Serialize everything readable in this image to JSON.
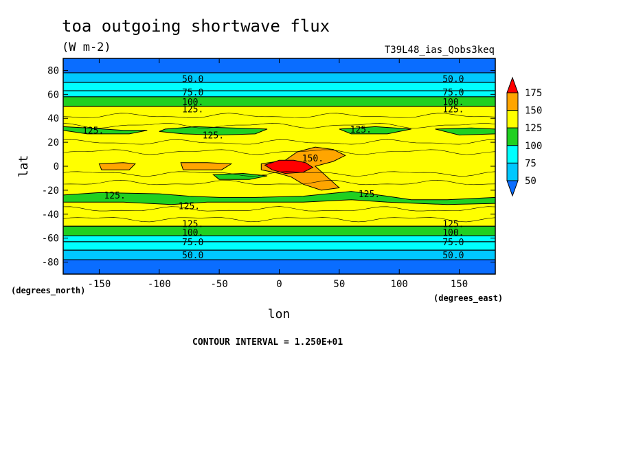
{
  "chart_data": {
    "type": "heatmap",
    "title": "toa outgoing shortwave flux",
    "units": "(W m-2)",
    "dataset": "T39L48_ias_Qobs3keq",
    "xlabel": "lon",
    "ylabel": "lat",
    "x_units": "(degrees_east)",
    "y_units": "(degrees_north)",
    "xlim": [
      -180,
      180
    ],
    "ylim": [
      -90,
      90
    ],
    "xticks": [
      -150,
      -100,
      -50,
      0,
      50,
      100,
      150
    ],
    "yticks": [
      80,
      60,
      40,
      20,
      0,
      -20,
      -40,
      -60,
      -80
    ],
    "xtick_labels": [
      "-150",
      "-100",
      "-50",
      "0",
      "50",
      "100",
      "150"
    ],
    "ytick_labels": [
      "80",
      "60",
      "40",
      "20",
      "0",
      "-20",
      "-40",
      "-60",
      "-80"
    ],
    "contour_interval_text": "CONTOUR INTERVAL = 1.250E+01",
    "colorbar": {
      "levels": [
        50,
        75,
        100,
        125,
        150,
        175
      ],
      "labels": [
        "50",
        "75",
        "100",
        "125",
        "150",
        "175"
      ],
      "colors": [
        "#0a6dff",
        "#00c8ff",
        "#00ffff",
        "#20d020",
        "#ffff00",
        "#ffa500",
        "#ff0000"
      ]
    },
    "zonal_bands": [
      {
        "lat_min": 78,
        "lat_max": 90,
        "value": 40
      },
      {
        "lat_min": 70,
        "lat_max": 78,
        "value": 62
      },
      {
        "lat_min": 63,
        "lat_max": 70,
        "value": 85
      },
      {
        "lat_min": 58,
        "lat_max": 63,
        "value": 92
      },
      {
        "lat_min": 50,
        "lat_max": 58,
        "value": 112
      },
      {
        "lat_min": -50,
        "lat_max": 50,
        "value": 135
      },
      {
        "lat_min": -58,
        "lat_max": -50,
        "value": 112
      },
      {
        "lat_min": -63,
        "lat_max": -58,
        "value": 92
      },
      {
        "lat_min": -70,
        "lat_max": -63,
        "value": 85
      },
      {
        "lat_min": -78,
        "lat_max": -70,
        "value": 62
      },
      {
        "lat_min": -90,
        "lat_max": -78,
        "value": 40
      }
    ],
    "regions": [
      {
        "level": 100,
        "points": [
          [
            -180,
            33
          ],
          [
            -160,
            32
          ],
          [
            -130,
            30
          ],
          [
            -110,
            30
          ],
          [
            -125,
            27
          ],
          [
            -160,
            27
          ],
          [
            -180,
            30
          ]
        ]
      },
      {
        "level": 100,
        "points": [
          [
            -95,
            31
          ],
          [
            -70,
            33
          ],
          [
            -40,
            32
          ],
          [
            -10,
            31
          ],
          [
            -20,
            27
          ],
          [
            -50,
            26
          ],
          [
            -80,
            27
          ],
          [
            -100,
            29
          ]
        ]
      },
      {
        "level": 100,
        "points": [
          [
            50,
            31
          ],
          [
            80,
            33
          ],
          [
            110,
            31
          ],
          [
            90,
            27
          ],
          [
            60,
            27
          ]
        ]
      },
      {
        "level": 100,
        "points": [
          [
            130,
            31
          ],
          [
            160,
            32
          ],
          [
            180,
            31
          ],
          [
            180,
            27
          ],
          [
            150,
            26
          ]
        ]
      },
      {
        "level": 100,
        "points": [
          [
            -55,
            -7
          ],
          [
            -30,
            -6
          ],
          [
            -10,
            -8
          ],
          [
            -25,
            -11
          ],
          [
            -50,
            -11
          ]
        ]
      },
      {
        "level": 100,
        "points": [
          [
            -180,
            -24
          ],
          [
            -150,
            -22
          ],
          [
            -100,
            -23
          ],
          [
            -75,
            -25
          ],
          [
            -50,
            -26
          ],
          [
            -20,
            -26
          ],
          [
            20,
            -25
          ],
          [
            60,
            -21
          ],
          [
            90,
            -25
          ],
          [
            110,
            -28
          ],
          [
            140,
            -28
          ],
          [
            180,
            -26
          ],
          [
            180,
            -31
          ],
          [
            140,
            -32
          ],
          [
            90,
            -30
          ],
          [
            60,
            -28
          ],
          [
            20,
            -30
          ],
          [
            -30,
            -30
          ],
          [
            -60,
            -30
          ],
          [
            -90,
            -32
          ],
          [
            -130,
            -30
          ],
          [
            -180,
            -30
          ]
        ]
      },
      {
        "level": 150,
        "points": [
          [
            -150,
            2
          ],
          [
            -130,
            3
          ],
          [
            -120,
            2
          ],
          [
            -125,
            -3
          ],
          [
            -148,
            -3
          ]
        ]
      },
      {
        "level": 150,
        "points": [
          [
            -82,
            3
          ],
          [
            -60,
            3
          ],
          [
            -40,
            2
          ],
          [
            -48,
            -3
          ],
          [
            -80,
            -3
          ]
        ]
      },
      {
        "level": 150,
        "points": [
          [
            -15,
            2
          ],
          [
            5,
            5
          ],
          [
            15,
            12
          ],
          [
            30,
            16
          ],
          [
            45,
            14
          ],
          [
            55,
            9
          ],
          [
            45,
            4
          ],
          [
            30,
            0
          ],
          [
            40,
            -9
          ],
          [
            50,
            -18
          ],
          [
            35,
            -20
          ],
          [
            20,
            -15
          ],
          [
            10,
            -9
          ],
          [
            0,
            -6
          ],
          [
            -15,
            -3
          ]
        ]
      },
      {
        "level": 175,
        "points": [
          [
            -12,
            1
          ],
          [
            0,
            5
          ],
          [
            12,
            5
          ],
          [
            22,
            3
          ],
          [
            28,
            -1
          ],
          [
            20,
            -5
          ],
          [
            5,
            -6
          ],
          [
            -6,
            -3
          ]
        ]
      }
    ]
  },
  "contour_labels": [
    {
      "text": "50.0",
      "lon": -72,
      "lat": 73
    },
    {
      "text": "75.0",
      "lon": -72,
      "lat": 62
    },
    {
      "text": "100.",
      "lon": -72,
      "lat": 54
    },
    {
      "text": "125.",
      "lon": -72,
      "lat": 48
    },
    {
      "text": "50.0",
      "lon": 145,
      "lat": 73
    },
    {
      "text": "75.0",
      "lon": 145,
      "lat": 62
    },
    {
      "text": "100.",
      "lon": 145,
      "lat": 54
    },
    {
      "text": "125.",
      "lon": 145,
      "lat": 48
    },
    {
      "text": "125.",
      "lon": -155,
      "lat": 30
    },
    {
      "text": "125.",
      "lon": -55,
      "lat": 26
    },
    {
      "text": "125.",
      "lon": 68,
      "lat": 31
    },
    {
      "text": "150.",
      "lon": 28,
      "lat": 7
    },
    {
      "text": "125.",
      "lon": -137,
      "lat": -24
    },
    {
      "text": "125.",
      "lon": -75,
      "lat": -33
    },
    {
      "text": "125.",
      "lon": 75,
      "lat": -23
    },
    {
      "text": "125.",
      "lon": -72,
      "lat": -48
    },
    {
      "text": "100.",
      "lon": -72,
      "lat": -55
    },
    {
      "text": "75.0",
      "lon": -72,
      "lat": -63
    },
    {
      "text": "50.0",
      "lon": -72,
      "lat": -74
    },
    {
      "text": "125.",
      "lon": 145,
      "lat": -48
    },
    {
      "text": "100.",
      "lon": 145,
      "lat": -55
    },
    {
      "text": "75.0",
      "lon": 145,
      "lat": -63
    },
    {
      "text": "50.0",
      "lon": 145,
      "lat": -74
    }
  ]
}
